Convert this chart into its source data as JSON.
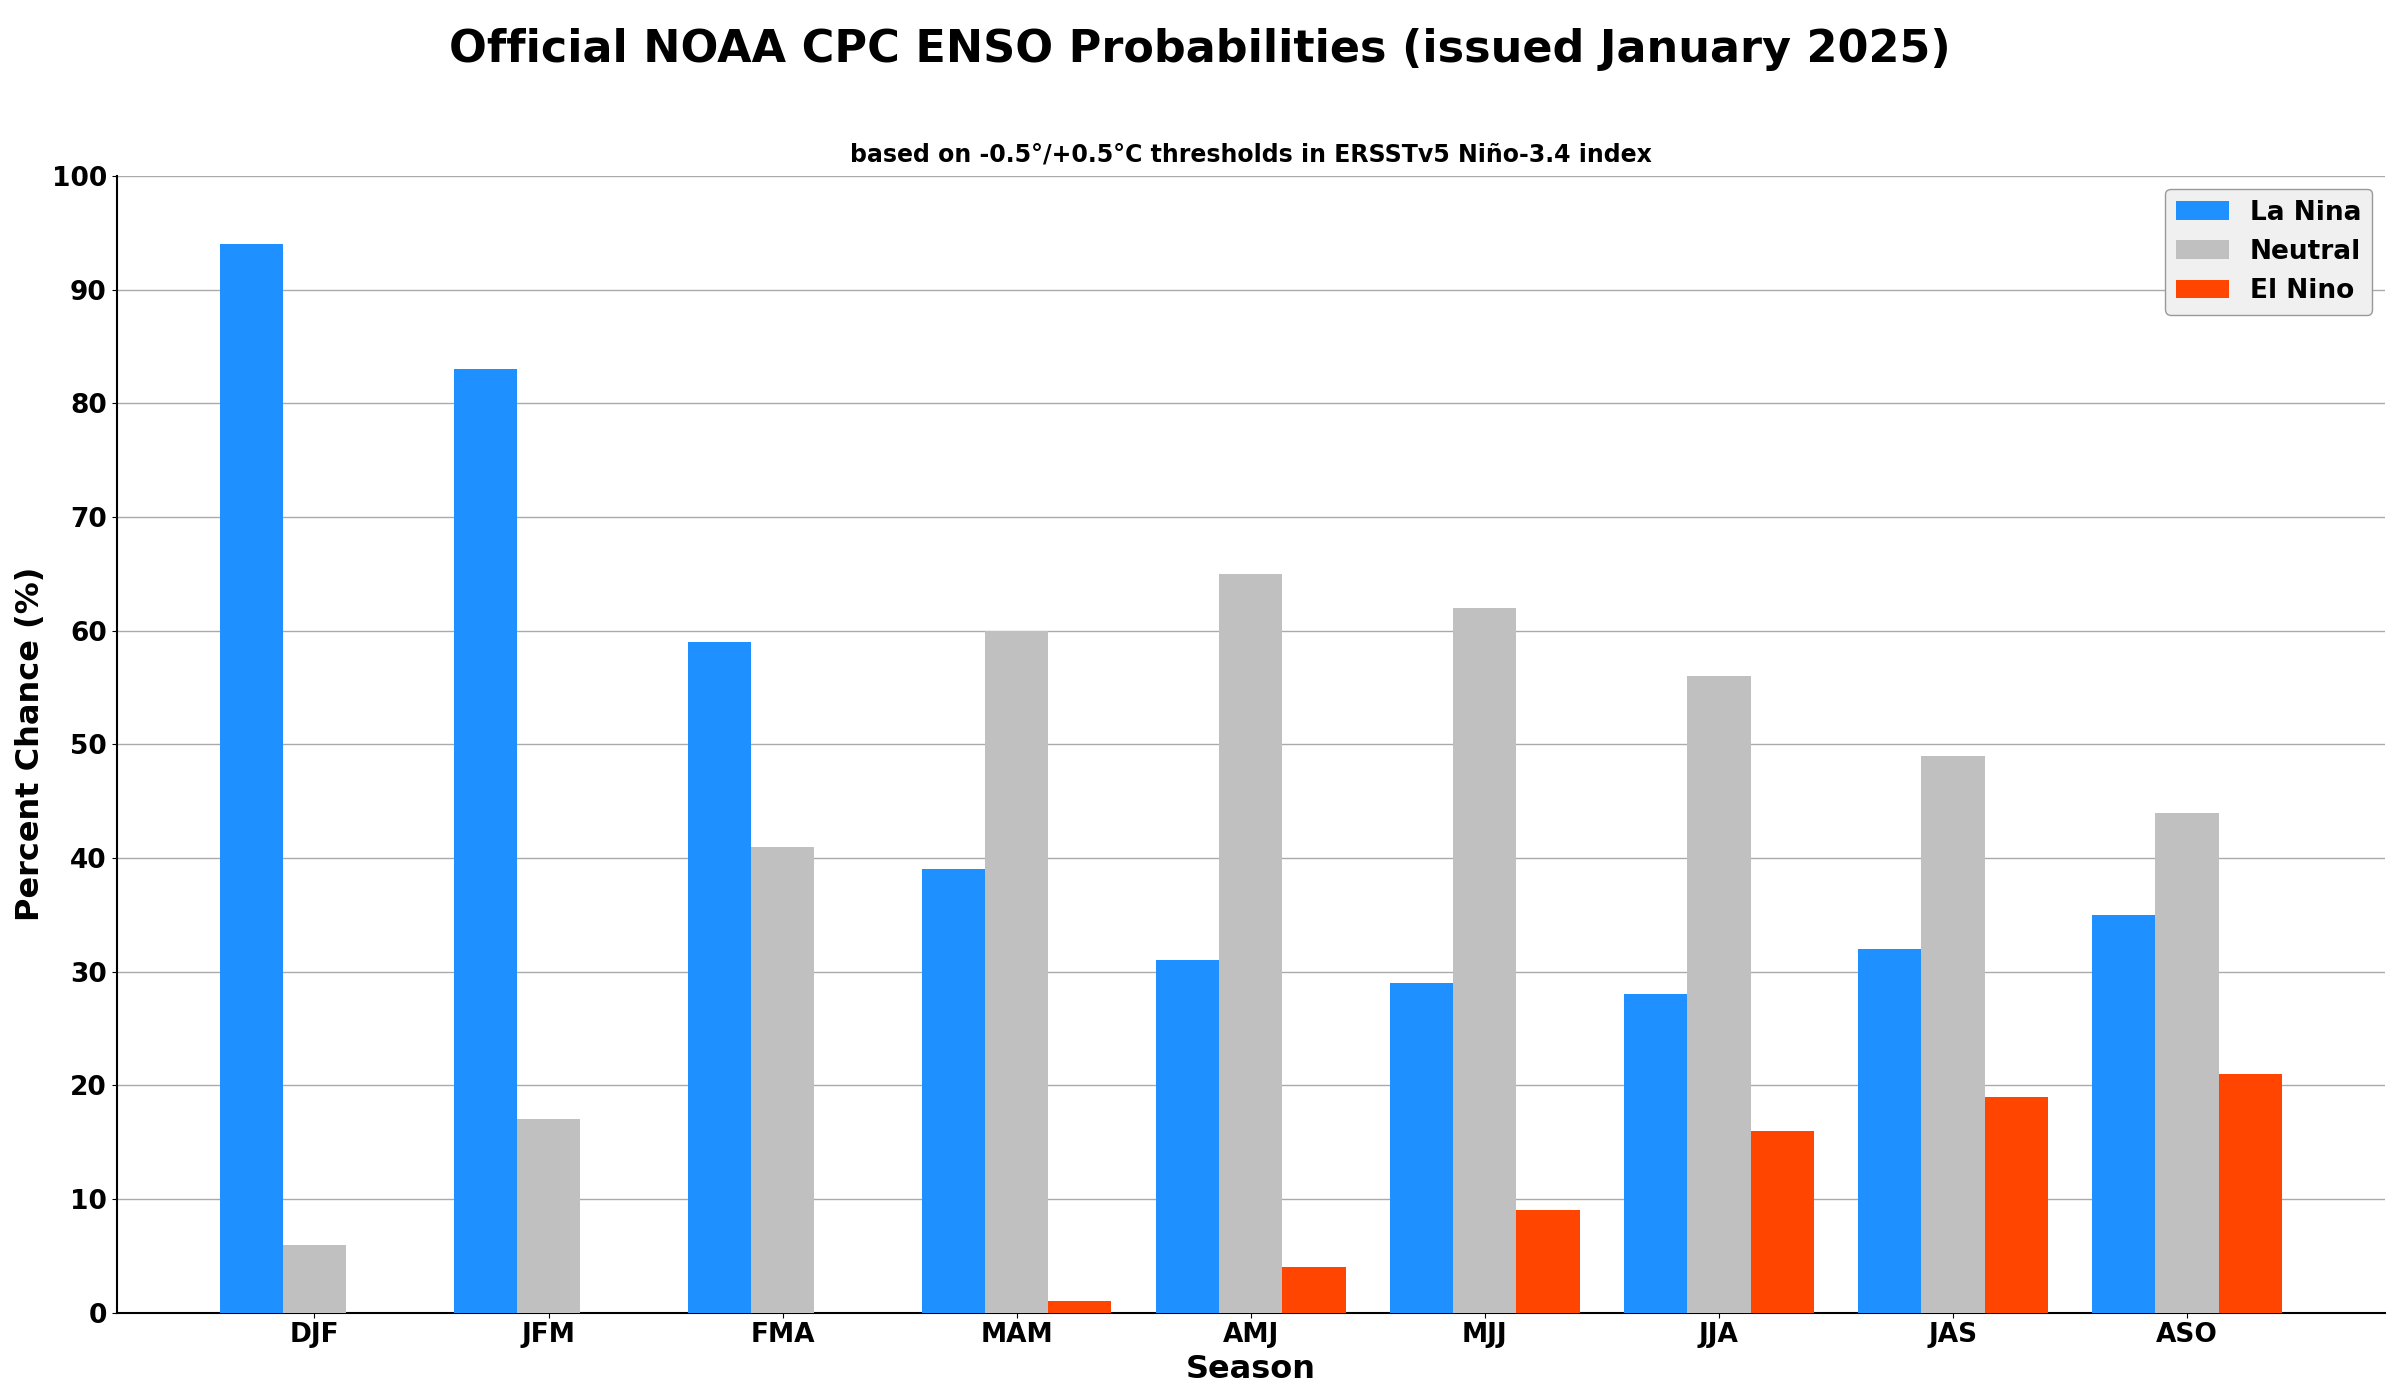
{
  "title": "Official NOAA CPC ENSO Probabilities (issued January 2025)",
  "subtitle": "based on -0.5°/+0.5°C thresholds in ERSSTv5 Niño-3.4 index",
  "seasons": [
    "DJF",
    "JFM",
    "FMA",
    "MAM",
    "AMJ",
    "MJJ",
    "JJA",
    "JAS",
    "ASO"
  ],
  "la_nina": [
    94,
    83,
    59,
    39,
    31,
    29,
    28,
    32,
    35
  ],
  "neutral": [
    6,
    17,
    41,
    60,
    65,
    62,
    56,
    49,
    44
  ],
  "el_nino": [
    0,
    0,
    0,
    1,
    4,
    9,
    16,
    19,
    21
  ],
  "la_nina_color": "#1e90ff",
  "neutral_color": "#c0c0c0",
  "el_nino_color": "#ff4500",
  "ylabel": "Percent Chance (%)",
  "xlabel": "Season",
  "ylim": [
    0,
    100
  ],
  "yticks": [
    0,
    10,
    20,
    30,
    40,
    50,
    60,
    70,
    80,
    90,
    100
  ],
  "title_fontsize": 32,
  "subtitle_fontsize": 17,
  "tick_fontsize": 19,
  "label_fontsize": 23,
  "legend_fontsize": 19,
  "bar_width": 0.27,
  "background_color": "#ffffff",
  "grid_color": "#aaaaaa"
}
